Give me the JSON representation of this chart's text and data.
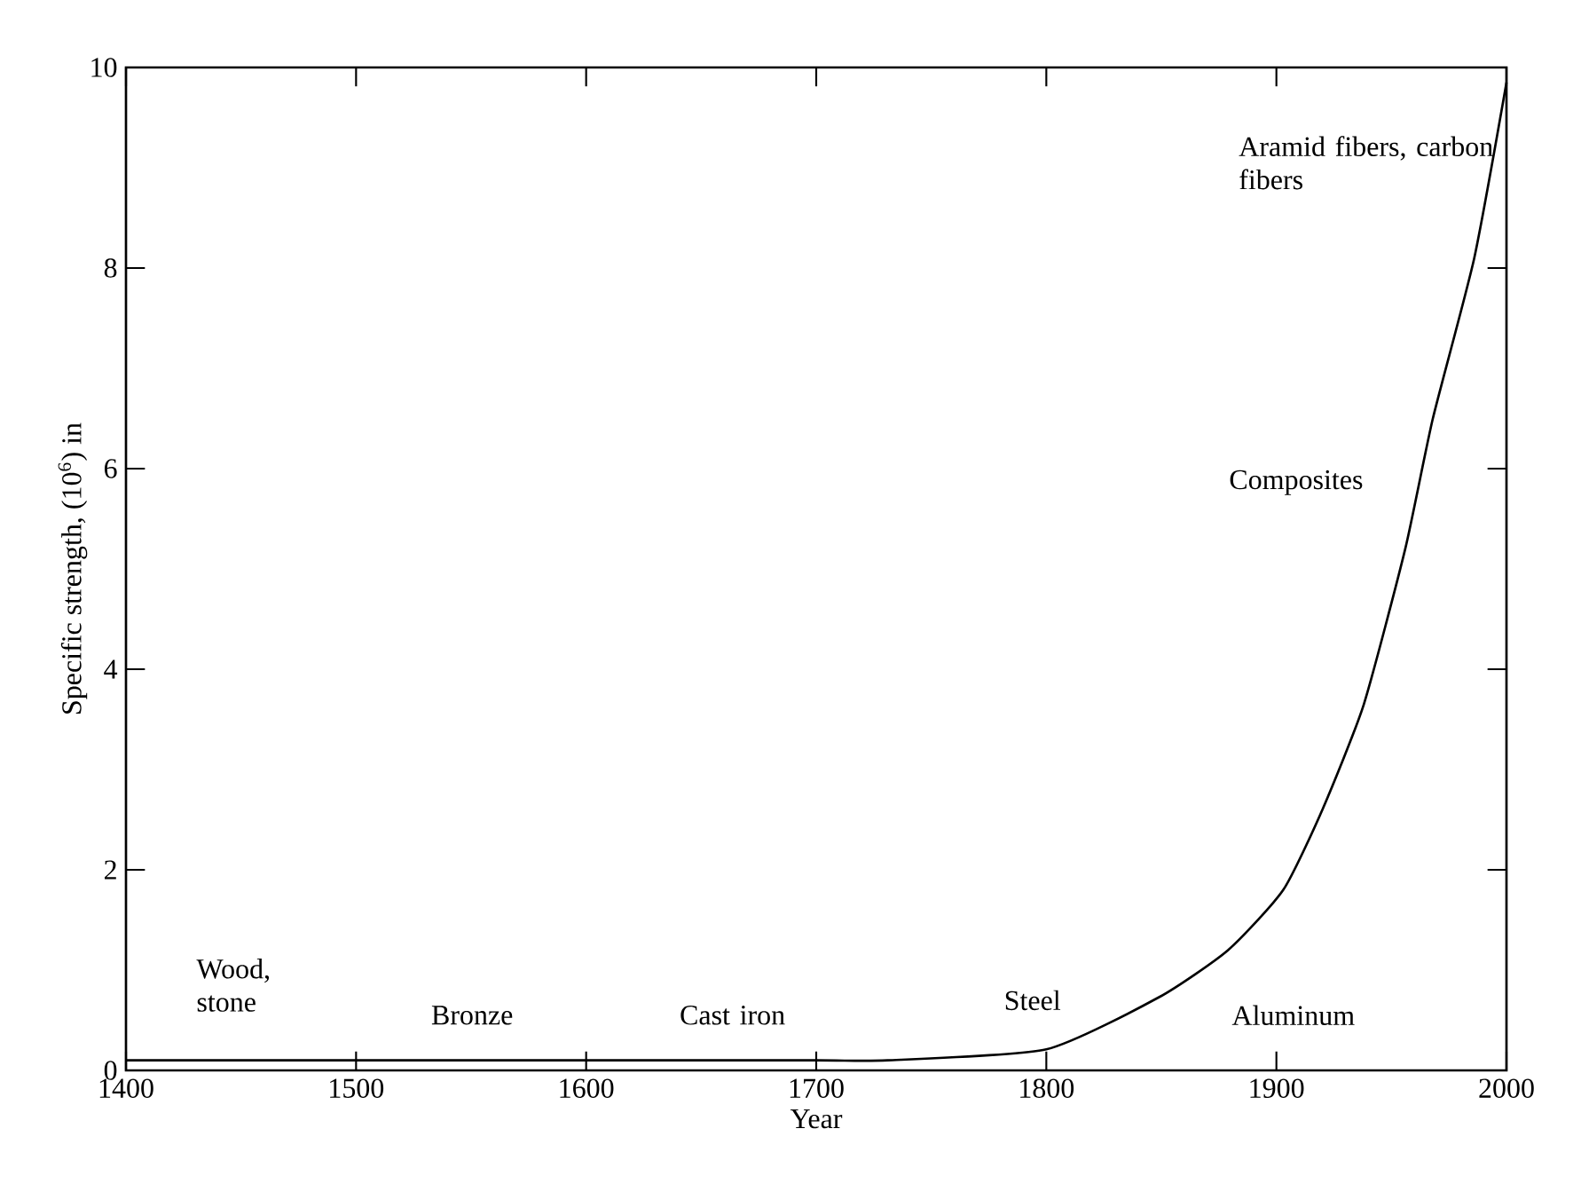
{
  "chart_data": {
    "type": "line",
    "xlabel": "Year",
    "ylabel": "Specific strength, (10$^{6}$) in",
    "x": [
      1400,
      1500,
      1600,
      1700,
      1731,
      1800,
      1849,
      1879,
      1903,
      1920,
      1938,
      1956,
      1968,
      1986,
      2000
    ],
    "series": [
      {
        "color": "#000000",
        "values": [
          0.1,
          0.1,
          0.1,
          0.1,
          0.1,
          0.21,
          0.73,
          1.2,
          1.8,
          2.6,
          3.65,
          5.2,
          6.5,
          8.1,
          9.85
        ]
      }
    ],
    "xlim": [
      1400,
      2000
    ],
    "ylim": [
      0,
      10
    ],
    "xticks": [
      1400,
      1500,
      1600,
      1700,
      1800,
      1900,
      2000
    ],
    "yticks": [
      0,
      2,
      4,
      6,
      8,
      10
    ],
    "marker": "none",
    "line_style": "solid",
    "annotations": [
      "Wood, stone",
      "Bronze",
      "Cast iron",
      "Steel",
      "Aluminum",
      "Composites",
      "Aramid fibers, carbon fibers"
    ]
  }
}
